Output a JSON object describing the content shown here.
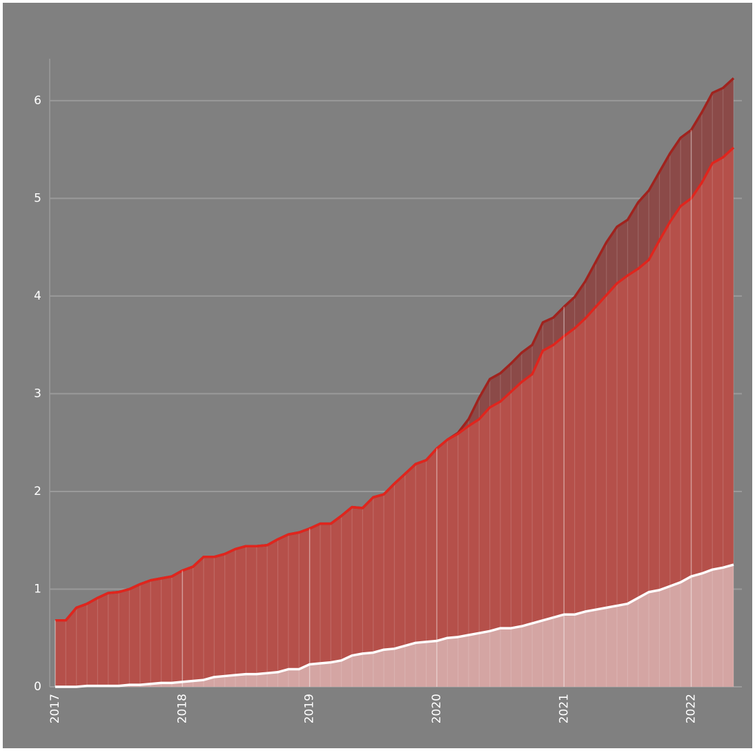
{
  "chart_data": {
    "type": "area",
    "categories": [
      "2017",
      null,
      null,
      null,
      null,
      null,
      null,
      null,
      null,
      null,
      null,
      null,
      "2018",
      null,
      null,
      null,
      null,
      null,
      null,
      null,
      null,
      null,
      null,
      null,
      "2019",
      null,
      null,
      null,
      null,
      null,
      null,
      null,
      null,
      null,
      null,
      null,
      "2020",
      null,
      null,
      null,
      null,
      null,
      null,
      null,
      null,
      null,
      null,
      null,
      "2021",
      null,
      null,
      null,
      null,
      null,
      null,
      null,
      null,
      null,
      null,
      null,
      "2022",
      null,
      null,
      null,
      null
    ],
    "series": [
      {
        "color": "#a0231e",
        "fill": "#8b4a48",
        "values": [
          0.68,
          0.68,
          0.81,
          0.85,
          0.91,
          0.96,
          0.97,
          1.0,
          1.05,
          1.09,
          1.11,
          1.13,
          1.19,
          1.23,
          1.33,
          1.33,
          1.36,
          1.41,
          1.44,
          1.44,
          1.45,
          1.51,
          1.56,
          1.58,
          1.62,
          1.67,
          1.67,
          1.75,
          1.84,
          1.83,
          1.94,
          1.97,
          2.08,
          2.18,
          2.28,
          2.32,
          2.44,
          2.53,
          2.6,
          2.74,
          2.96,
          3.15,
          3.21,
          3.31,
          3.42,
          3.5,
          3.73,
          3.78,
          3.89,
          3.99,
          4.15,
          4.35,
          4.55,
          4.71,
          4.78,
          4.96,
          5.08,
          5.27,
          5.46,
          5.62,
          5.7,
          5.88,
          6.08,
          6.13,
          6.23
        ]
      },
      {
        "color": "#e0251d",
        "fill": "#b5504a",
        "values": [
          0.68,
          0.68,
          0.81,
          0.85,
          0.91,
          0.96,
          0.97,
          1.0,
          1.05,
          1.09,
          1.11,
          1.13,
          1.19,
          1.23,
          1.33,
          1.33,
          1.36,
          1.41,
          1.44,
          1.44,
          1.45,
          1.51,
          1.56,
          1.58,
          1.62,
          1.67,
          1.67,
          1.75,
          1.84,
          1.83,
          1.94,
          1.97,
          2.08,
          2.18,
          2.28,
          2.32,
          2.44,
          2.53,
          2.59,
          2.67,
          2.74,
          2.86,
          2.92,
          3.02,
          3.12,
          3.2,
          3.44,
          3.5,
          3.59,
          3.67,
          3.77,
          3.89,
          4.01,
          4.13,
          4.21,
          4.28,
          4.37,
          4.57,
          4.76,
          4.92,
          5.0,
          5.16,
          5.36,
          5.42,
          5.52
        ]
      },
      {
        "color": "#ffffff",
        "fill": "#d4a5a3",
        "values": [
          0,
          0,
          0,
          0.01,
          0.01,
          0.01,
          0.01,
          0.02,
          0.02,
          0.03,
          0.04,
          0.04,
          0.05,
          0.06,
          0.07,
          0.1,
          0.11,
          0.12,
          0.13,
          0.13,
          0.14,
          0.15,
          0.18,
          0.18,
          0.23,
          0.24,
          0.25,
          0.27,
          0.32,
          0.34,
          0.35,
          0.38,
          0.39,
          0.42,
          0.45,
          0.46,
          0.47,
          0.5,
          0.51,
          0.53,
          0.55,
          0.57,
          0.6,
          0.6,
          0.62,
          0.65,
          0.68,
          0.71,
          0.74,
          0.74,
          0.77,
          0.79,
          0.81,
          0.83,
          0.85,
          0.91,
          0.97,
          0.99,
          1.03,
          1.07,
          1.13,
          1.16,
          1.2,
          1.22,
          1.25
        ]
      }
    ],
    "ylim": [
      0,
      6.43
    ],
    "yticks": [
      0,
      1,
      2,
      3,
      4,
      5,
      6
    ],
    "grid": true
  }
}
